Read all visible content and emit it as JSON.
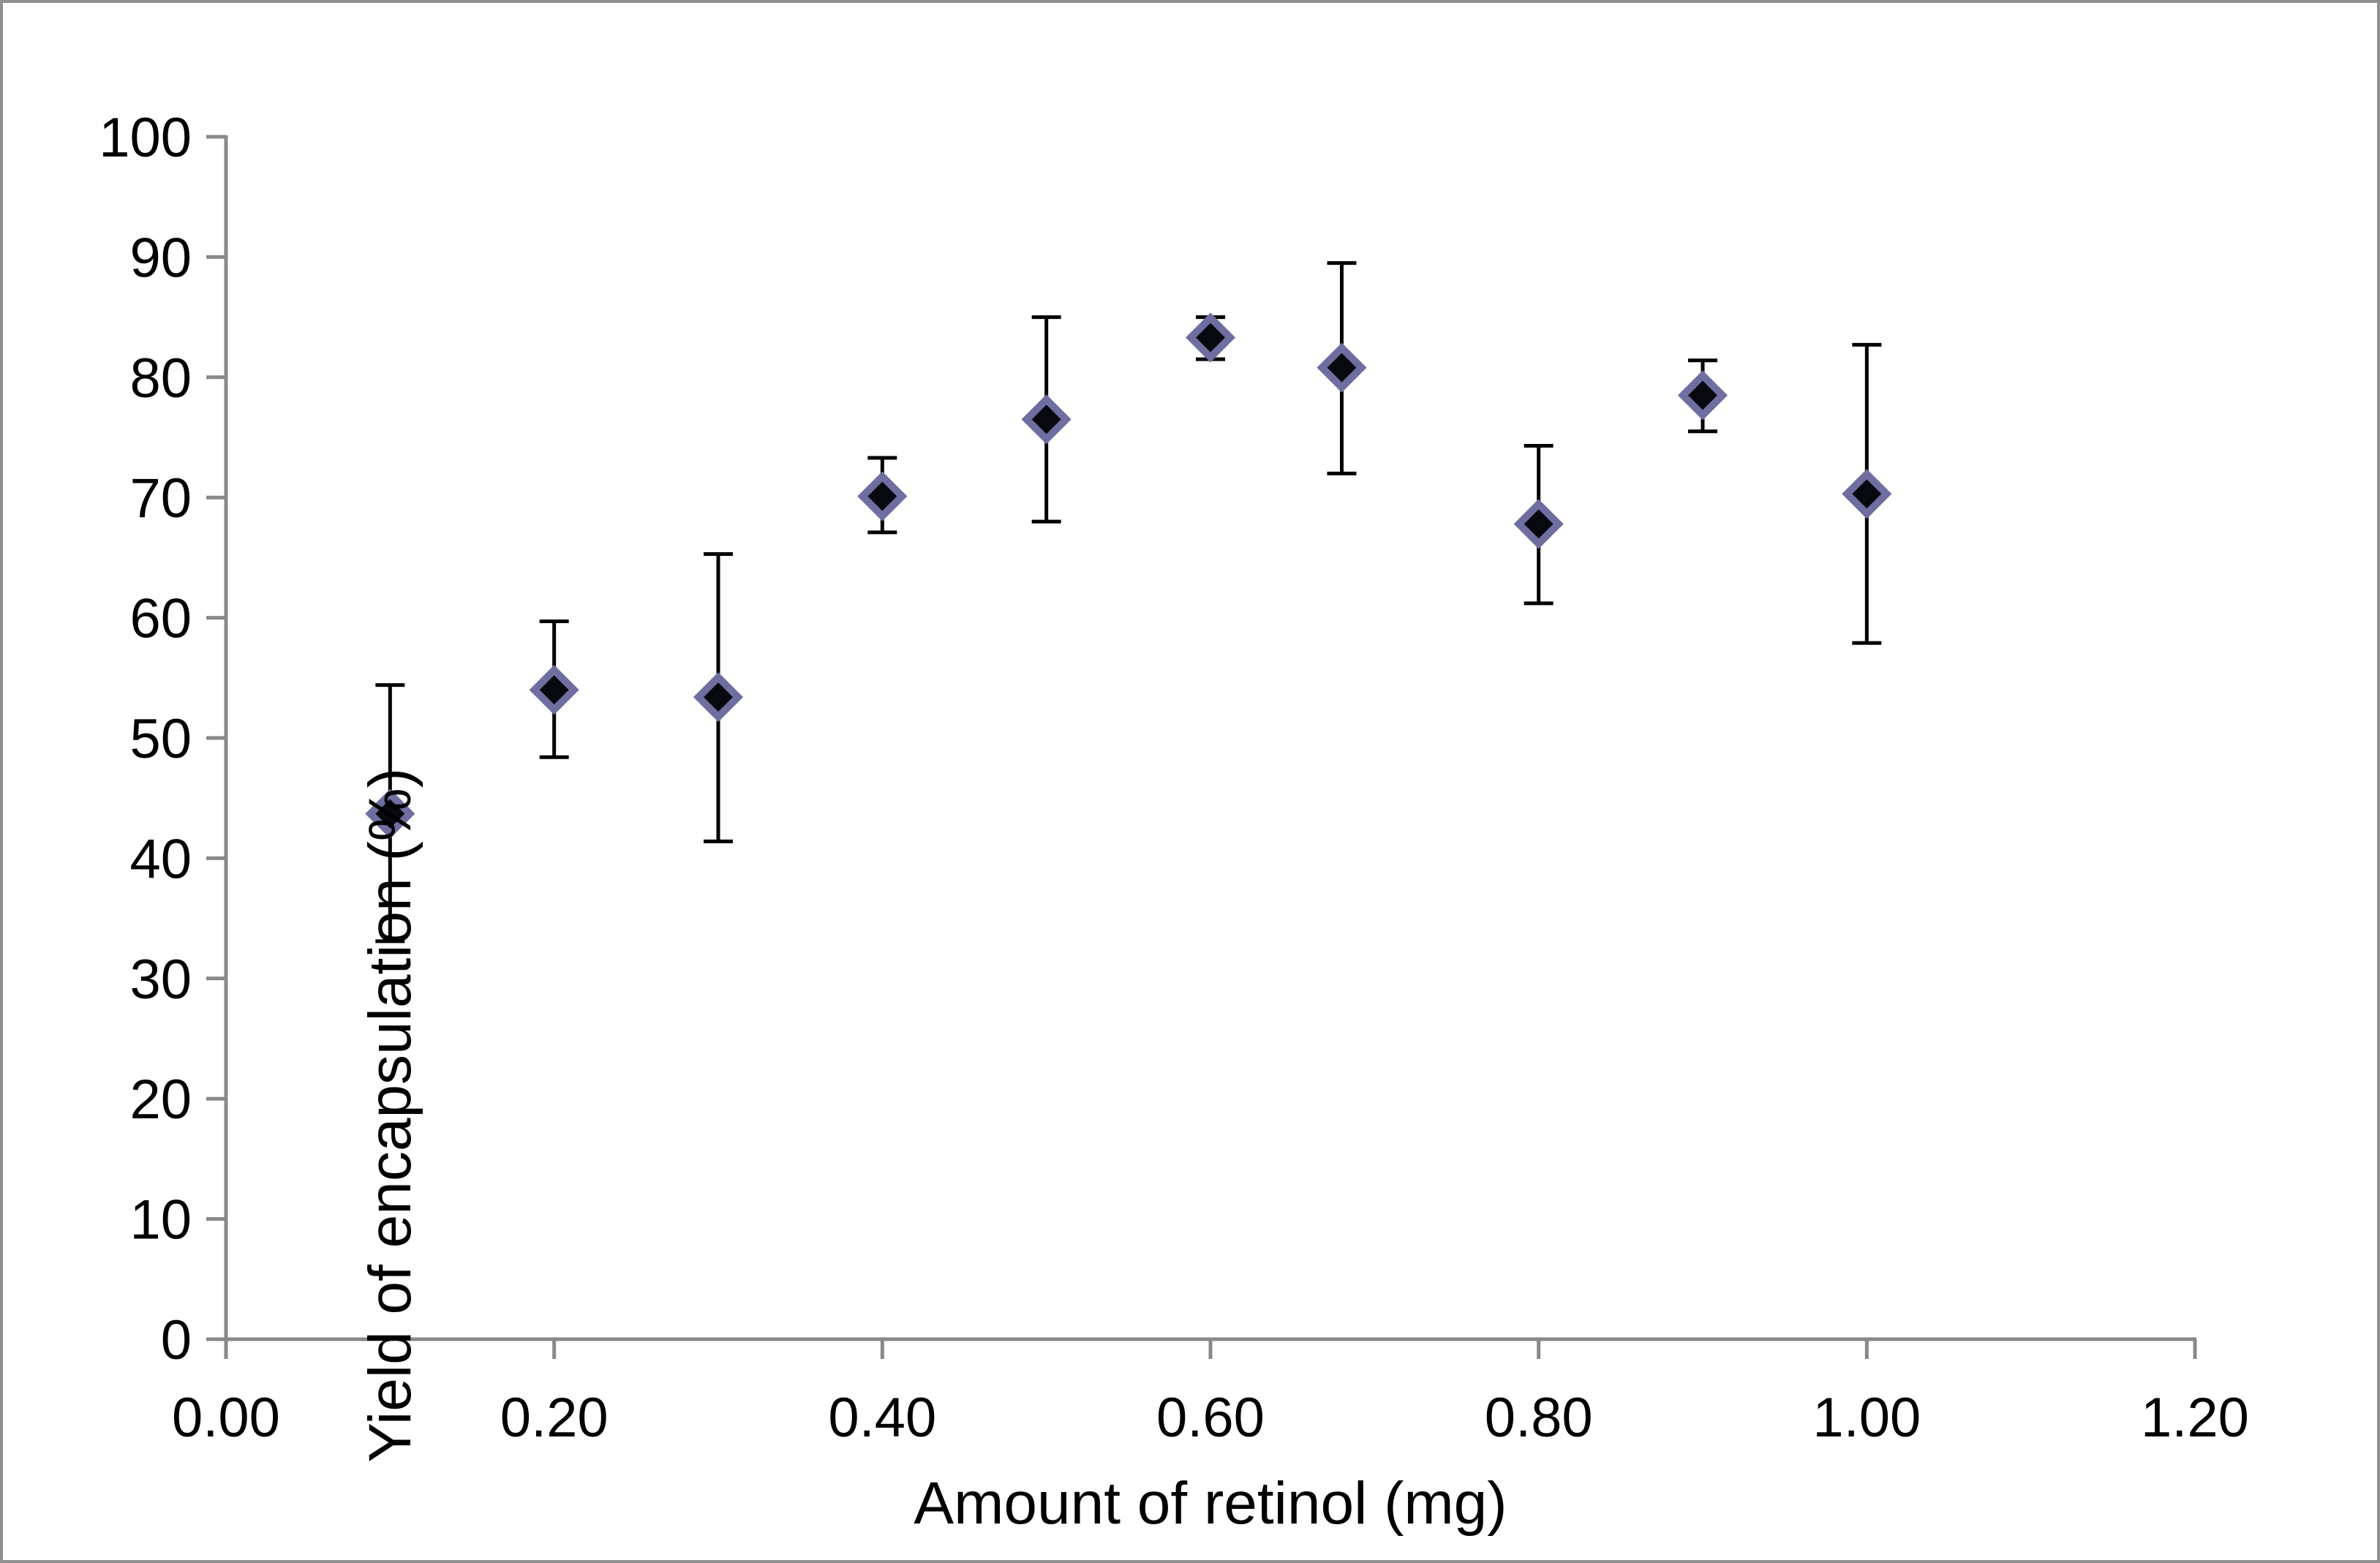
{
  "figure": {
    "background": "#ffffff",
    "border_color": "#8f8f8f"
  },
  "chart_data": {
    "type": "scatter",
    "title": "",
    "xlabel": "Amount of retinol (mg)",
    "ylabel": "Yield of encapsulation (%)",
    "xlim": [
      0.0,
      1.2
    ],
    "ylim": [
      0,
      100
    ],
    "grid": false,
    "legend": "none",
    "axis_color": "#898989",
    "tick_label_color": "#000000",
    "x_ticks": [
      {
        "value": 0.0,
        "label": "0.00"
      },
      {
        "value": 0.2,
        "label": "0.20"
      },
      {
        "value": 0.4,
        "label": "0.40"
      },
      {
        "value": 0.6,
        "label": "0.60"
      },
      {
        "value": 0.8,
        "label": "0.80"
      },
      {
        "value": 1.0,
        "label": "1.00"
      },
      {
        "value": 1.2,
        "label": "1.20"
      }
    ],
    "y_ticks": [
      {
        "value": 0,
        "label": "0"
      },
      {
        "value": 10,
        "label": "10"
      },
      {
        "value": 20,
        "label": "20"
      },
      {
        "value": 30,
        "label": "30"
      },
      {
        "value": 40,
        "label": "40"
      },
      {
        "value": 50,
        "label": "50"
      },
      {
        "value": 60,
        "label": "60"
      },
      {
        "value": 70,
        "label": "70"
      },
      {
        "value": 80,
        "label": "80"
      },
      {
        "value": 90,
        "label": "90"
      },
      {
        "value": 100,
        "label": "100"
      }
    ],
    "marker": {
      "shape": "diamond",
      "fill": "#08080f",
      "border": "#6e6ea0",
      "border_width": 10,
      "size": 64
    },
    "error_bar": {
      "color": "#000000",
      "line_width": 5,
      "cap_half_width": 20
    },
    "points": [
      {
        "x": 0.1,
        "y": 43.7,
        "err_up": 10.7,
        "err_down": 10.6
      },
      {
        "x": 0.2,
        "y": 54.0,
        "err_up": 5.7,
        "err_down": 5.6
      },
      {
        "x": 0.3,
        "y": 53.4,
        "err_up": 11.9,
        "err_down": 12.0
      },
      {
        "x": 0.4,
        "y": 70.1,
        "err_up": 3.2,
        "err_down": 3.0
      },
      {
        "x": 0.5,
        "y": 76.5,
        "err_up": 8.5,
        "err_down": 8.5
      },
      {
        "x": 0.6,
        "y": 83.3,
        "err_up": 1.7,
        "err_down": 1.8
      },
      {
        "x": 0.68,
        "y": 80.8,
        "err_up": 8.7,
        "err_down": 8.8
      },
      {
        "x": 0.8,
        "y": 67.8,
        "err_up": 6.5,
        "err_down": 6.6
      },
      {
        "x": 0.9,
        "y": 78.5,
        "err_up": 2.9,
        "err_down": 3.0
      },
      {
        "x": 1.0,
        "y": 70.3,
        "err_up": 12.4,
        "err_down": 12.4
      }
    ]
  }
}
